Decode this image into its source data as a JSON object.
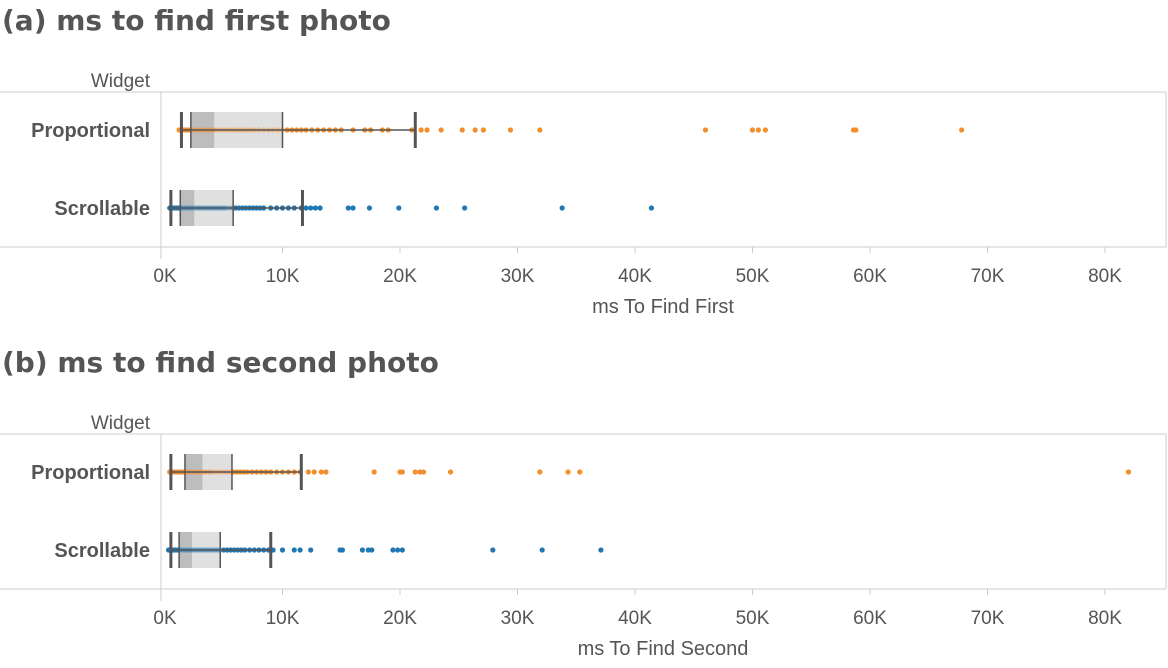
{
  "panels": [
    {
      "title": "(a) ms to find first photo",
      "header": "Widget",
      "xlabel": "ms To Find First",
      "ticks": [
        "0K",
        "10K",
        "20K",
        "30K",
        "40K",
        "50K",
        "60K",
        "70K",
        "80K"
      ]
    },
    {
      "title": "(b) ms to find second photo",
      "header": "Widget",
      "xlabel": "ms To Find Second",
      "ticks": [
        "0K",
        "10K",
        "20K",
        "30K",
        "40K",
        "50K",
        "60K",
        "70K",
        "80K"
      ]
    }
  ],
  "colors": {
    "Proportional": "#f28e2b",
    "Scrollable": "#1f77b4",
    "box_lower": "#bdbdbd",
    "box_upper": "#e0e0e0",
    "whisker": "#555555",
    "axis": "#cccccc"
  },
  "chart_data": [
    {
      "type": "box",
      "title": "(a) ms to find first photo",
      "xlabel": "ms To Find First",
      "ylabel": "Widget",
      "xlim": [
        0,
        85000
      ],
      "categories": [
        "Proportional",
        "Scrollable"
      ],
      "series": [
        {
          "name": "Proportional",
          "whisker_low": 1400,
          "q1": 2200,
          "median": 4200,
          "q3": 10000,
          "whisker_high": 21300,
          "points": [
            1200,
            1500,
            1700,
            1900,
            2100,
            2300,
            2500,
            2700,
            2900,
            3100,
            3300,
            3500,
            3700,
            3900,
            4100,
            4300,
            4600,
            4900,
            5200,
            5500,
            5800,
            6100,
            6400,
            6700,
            7000,
            7300,
            7600,
            8000,
            8400,
            8800,
            9200,
            9600,
            10000,
            10400,
            10800,
            11200,
            11600,
            12000,
            12500,
            13000,
            13500,
            14000,
            14500,
            15000,
            16000,
            17000,
            17500,
            18500,
            19000,
            21000,
            21800,
            22300,
            23500,
            25300,
            26400,
            27100,
            29400,
            31900,
            46000,
            50000,
            50500,
            51100,
            58600,
            58800,
            67800
          ]
        },
        {
          "name": "Scrollable",
          "whisker_low": 500,
          "q1": 1300,
          "median": 2500,
          "q3": 5800,
          "whisker_high": 11700,
          "points": [
            400,
            600,
            800,
            1000,
            1200,
            1400,
            1600,
            1800,
            2000,
            2200,
            2400,
            2600,
            2800,
            3000,
            3200,
            3400,
            3600,
            3800,
            4000,
            4200,
            4400,
            4600,
            4800,
            5000,
            5200,
            5500,
            5800,
            6000,
            6300,
            6600,
            6900,
            7200,
            7500,
            7800,
            8100,
            8400,
            9000,
            9500,
            10000,
            10500,
            11000,
            11600,
            12000,
            12400,
            12800,
            13200,
            15600,
            16000,
            17400,
            19900,
            23100,
            25500,
            33800,
            41400
          ]
        }
      ]
    },
    {
      "type": "box",
      "title": "(b) ms to find second photo",
      "xlabel": "ms To Find Second",
      "ylabel": "Widget",
      "xlim": [
        0,
        85000
      ],
      "categories": [
        "Proportional",
        "Scrollable"
      ],
      "series": [
        {
          "name": "Proportional",
          "whisker_low": 500,
          "q1": 1700,
          "median": 3200,
          "q3": 5700,
          "whisker_high": 11600,
          "points": [
            400,
            600,
            800,
            1000,
            1200,
            1400,
            1600,
            1800,
            2000,
            2200,
            2400,
            2600,
            2800,
            3000,
            3200,
            3400,
            3600,
            3800,
            4000,
            4300,
            4600,
            4900,
            5200,
            5500,
            5800,
            6100,
            6400,
            6700,
            7000,
            7400,
            7800,
            8200,
            8600,
            9000,
            9500,
            10000,
            10500,
            11000,
            11500,
            12200,
            12700,
            13300,
            13700,
            17800,
            20000,
            20200,
            21300,
            21700,
            22000,
            24300,
            31900,
            34300,
            35300,
            82000
          ]
        },
        {
          "name": "Scrollable",
          "whisker_low": 500,
          "q1": 1200,
          "median": 2300,
          "q3": 4700,
          "whisker_high": 9000,
          "points": [
            300,
            500,
            700,
            900,
            1100,
            1300,
            1500,
            1700,
            1900,
            2100,
            2300,
            2500,
            2700,
            2900,
            3100,
            3300,
            3500,
            3700,
            3900,
            4100,
            4300,
            4500,
            4700,
            5000,
            5300,
            5600,
            5900,
            6200,
            6500,
            6800,
            7200,
            7600,
            8000,
            8400,
            8800,
            9200,
            10000,
            11000,
            11500,
            12400,
            14900,
            15100,
            16800,
            17300,
            17600,
            19400,
            19800,
            20200,
            27900,
            32100,
            37100
          ]
        }
      ]
    }
  ]
}
